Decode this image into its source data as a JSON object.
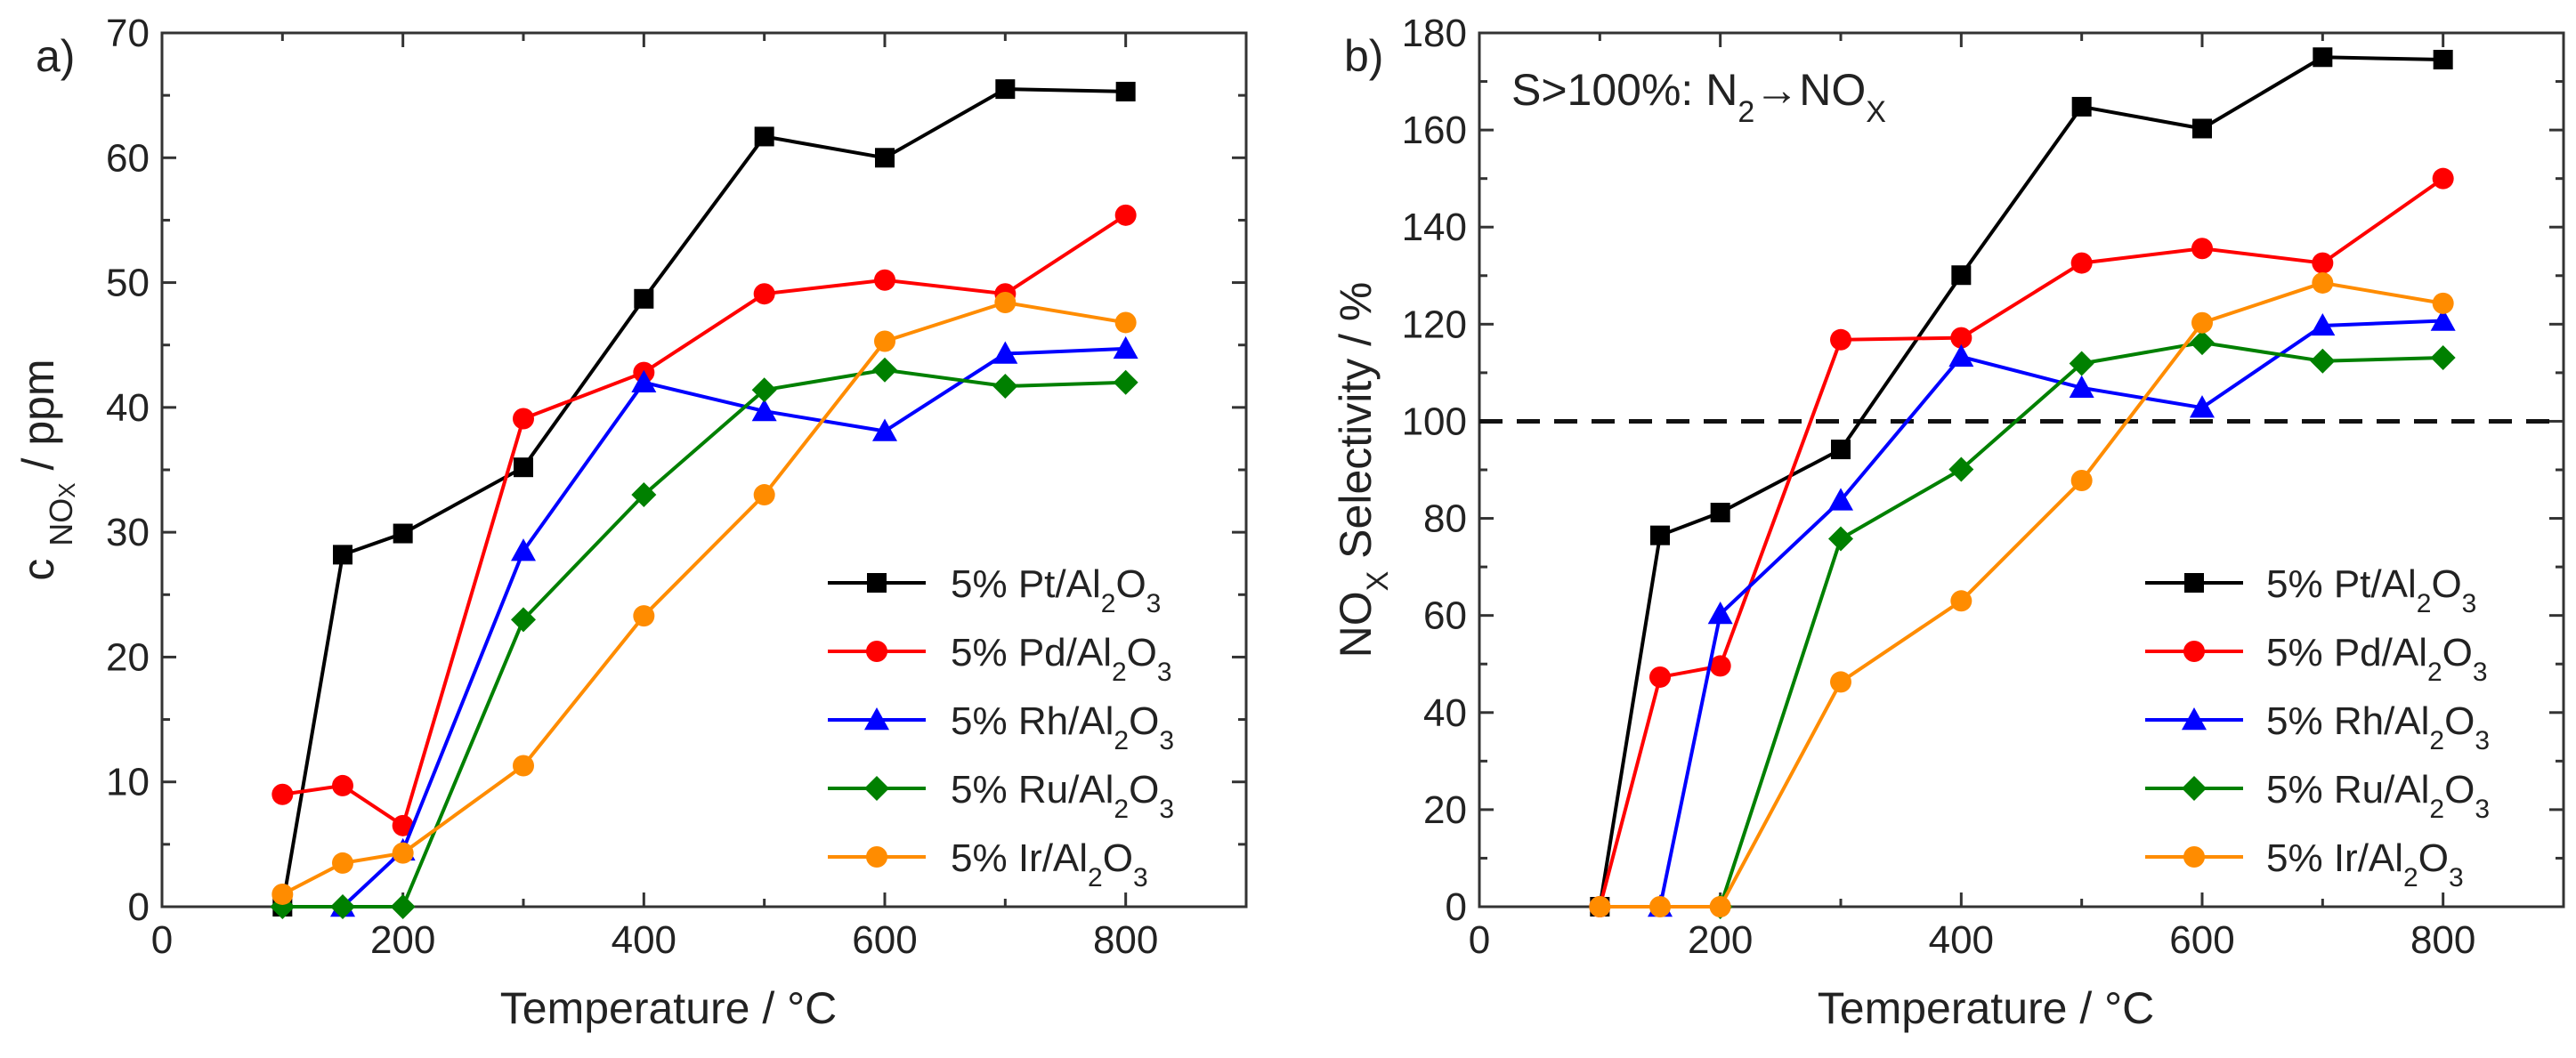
{
  "chart_data": [
    {
      "type": "line",
      "panel_label": "a)",
      "title": "",
      "xlabel": "Temperature / °C",
      "ylabel": {
        "main": "c",
        "sub": "NO",
        "sub2": "X",
        "rest": " / ppm"
      },
      "xlim": [
        0,
        900
      ],
      "ylim": [
        0,
        70
      ],
      "xticks": [
        0,
        200,
        400,
        600,
        800
      ],
      "yticks": [
        0,
        10,
        20,
        30,
        40,
        50,
        60,
        70
      ],
      "legend_position": "bottom-right",
      "series": [
        {
          "name": "5% Pt/Al2O3",
          "legend": {
            "prefix": "5% Pt/Al",
            "s1": "2",
            "mid": "O",
            "s2": "3"
          },
          "color": "#000000",
          "marker": "square",
          "x": [
            100,
            150,
            200,
            300,
            400,
            500,
            600,
            700,
            800
          ],
          "y": [
            0,
            28.2,
            29.9,
            35.2,
            48.7,
            61.7,
            60.0,
            65.5,
            65.3
          ]
        },
        {
          "name": "5% Pd/Al2O3",
          "legend": {
            "prefix": "5% Pd/Al",
            "s1": "2",
            "mid": "O",
            "s2": "3"
          },
          "color": "#ff0000",
          "marker": "circle",
          "x": [
            100,
            150,
            200,
            300,
            400,
            500,
            600,
            700,
            800
          ],
          "y": [
            9.0,
            9.7,
            6.5,
            39.1,
            42.8,
            49.1,
            50.2,
            49.1,
            55.4
          ]
        },
        {
          "name": "5% Rh/Al2O3",
          "legend": {
            "prefix": "5% Rh/Al",
            "s1": "2",
            "mid": "O",
            "s2": "3"
          },
          "color": "#0000ff",
          "marker": "triangle",
          "x": [
            150,
            200,
            300,
            400,
            500,
            600,
            700,
            800
          ],
          "y": [
            0,
            4.5,
            28.5,
            42.0,
            39.7,
            38.1,
            44.3,
            44.7
          ]
        },
        {
          "name": "5% Ru/Al2O3",
          "legend": {
            "prefix": "5% Ru/Al",
            "s1": "2",
            "mid": "O",
            "s2": "3"
          },
          "color": "#008000",
          "marker": "diamond",
          "x": [
            100,
            150,
            200,
            300,
            400,
            500,
            600,
            700,
            800
          ],
          "y": [
            0,
            0,
            0,
            23.0,
            33.0,
            41.4,
            43.0,
            41.7,
            42.0
          ]
        },
        {
          "name": "5% Ir/Al2O3",
          "legend": {
            "prefix": "5% Ir/Al",
            "s1": "2",
            "mid": "O",
            "s2": "3"
          },
          "color": "#ff8c00",
          "marker": "circle",
          "x": [
            100,
            150,
            200,
            300,
            400,
            500,
            600,
            700,
            800
          ],
          "y": [
            1.0,
            3.5,
            4.3,
            11.3,
            23.3,
            33.0,
            45.3,
            48.4,
            46.8
          ]
        }
      ]
    },
    {
      "type": "line",
      "panel_label": "b)",
      "title": "",
      "annotation": {
        "a": "S>100%: N",
        "a_sub": "2",
        "arrow": "→NO",
        "b_sub": "X"
      },
      "xlabel": "Temperature / °C",
      "ylabel": {
        "main": "NO",
        "sub": "X",
        "rest": " Selectivity / %"
      },
      "xlim": [
        0,
        900
      ],
      "ylim": [
        0,
        180
      ],
      "xticks": [
        0,
        200,
        400,
        600,
        800
      ],
      "yticks": [
        0,
        20,
        40,
        60,
        80,
        100,
        120,
        140,
        160,
        180
      ],
      "reference_line": {
        "y": 100,
        "style": "dashed"
      },
      "legend_position": "bottom-right",
      "series": [
        {
          "name": "5% Pt/Al2O3",
          "legend": {
            "prefix": "5% Pt/Al",
            "s1": "2",
            "mid": "O",
            "s2": "3"
          },
          "color": "#000000",
          "marker": "square",
          "x": [
            100,
            150,
            200,
            300,
            400,
            500,
            600,
            700,
            800
          ],
          "y": [
            0,
            76.5,
            81.2,
            94.2,
            130.1,
            164.8,
            160.3,
            175.0,
            174.5
          ]
        },
        {
          "name": "5% Pd/Al2O3",
          "legend": {
            "prefix": "5% Pd/Al",
            "s1": "2",
            "mid": "O",
            "s2": "3"
          },
          "color": "#ff0000",
          "marker": "circle",
          "x": [
            100,
            150,
            200,
            300,
            400,
            500,
            600,
            700,
            800
          ],
          "y": [
            0,
            47.3,
            49.6,
            116.8,
            117.2,
            132.6,
            135.6,
            132.6,
            150.0
          ]
        },
        {
          "name": "5% Rh/Al2O3",
          "legend": {
            "prefix": "5% Rh/Al",
            "s1": "2",
            "mid": "O",
            "s2": "3"
          },
          "color": "#0000ff",
          "marker": "triangle",
          "x": [
            150,
            200,
            300,
            400,
            500,
            600,
            700,
            800
          ],
          "y": [
            0,
            60.3,
            83.7,
            113.3,
            106.9,
            102.8,
            119.7,
            120.7
          ]
        },
        {
          "name": "5% Ru/Al2O3",
          "legend": {
            "prefix": "5% Ru/Al",
            "s1": "2",
            "mid": "O",
            "s2": "3"
          },
          "color": "#008000",
          "marker": "diamond",
          "x": [
            200,
            300,
            400,
            500,
            600,
            700,
            800
          ],
          "y": [
            0,
            75.8,
            90.1,
            111.9,
            116.2,
            112.4,
            113.1
          ]
        },
        {
          "name": "5% Ir/Al2O3",
          "legend": {
            "prefix": "5% Ir/Al",
            "s1": "2",
            "mid": "O",
            "s2": "3"
          },
          "color": "#ff8c00",
          "marker": "circle",
          "x": [
            100,
            150,
            200,
            300,
            400,
            500,
            600,
            700,
            800
          ],
          "y": [
            0,
            0,
            0,
            46.3,
            63.0,
            87.8,
            120.3,
            128.5,
            124.3
          ]
        }
      ]
    }
  ]
}
